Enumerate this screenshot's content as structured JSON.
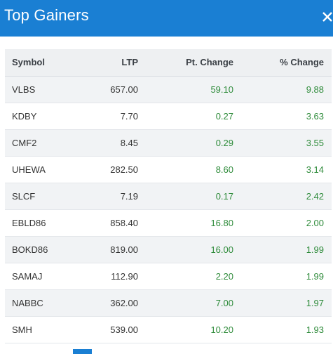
{
  "header": {
    "title": "Top Gainers"
  },
  "table": {
    "columns": [
      "Symbol",
      "LTP",
      "Pt. Change",
      "% Change"
    ],
    "rows": [
      {
        "symbol": "VLBS",
        "ltp": "657.00",
        "pt_change": "59.10",
        "pct_change": "9.88"
      },
      {
        "symbol": "KDBY",
        "ltp": "7.70",
        "pt_change": "0.27",
        "pct_change": "3.63"
      },
      {
        "symbol": "CMF2",
        "ltp": "8.45",
        "pt_change": "0.29",
        "pct_change": "3.55"
      },
      {
        "symbol": "UHEWA",
        "ltp": "282.50",
        "pt_change": "8.60",
        "pct_change": "3.14"
      },
      {
        "symbol": "SLCF",
        "ltp": "7.19",
        "pt_change": "0.17",
        "pct_change": "2.42"
      },
      {
        "symbol": "EBLD86",
        "ltp": "858.40",
        "pt_change": "16.80",
        "pct_change": "2.00"
      },
      {
        "symbol": "BOKD86",
        "ltp": "819.00",
        "pt_change": "16.00",
        "pct_change": "1.99"
      },
      {
        "symbol": "SAMAJ",
        "ltp": "112.90",
        "pt_change": "2.20",
        "pct_change": "1.99"
      },
      {
        "symbol": "NABBC",
        "ltp": "362.00",
        "pt_change": "7.00",
        "pct_change": "1.97"
      },
      {
        "symbol": "SMH",
        "ltp": "539.00",
        "pt_change": "10.20",
        "pct_change": "1.93"
      }
    ]
  },
  "colors": {
    "header_bg": "#1a7fd3",
    "positive_change": "#2e8b3a"
  },
  "icons": {
    "close": "close-icon"
  }
}
